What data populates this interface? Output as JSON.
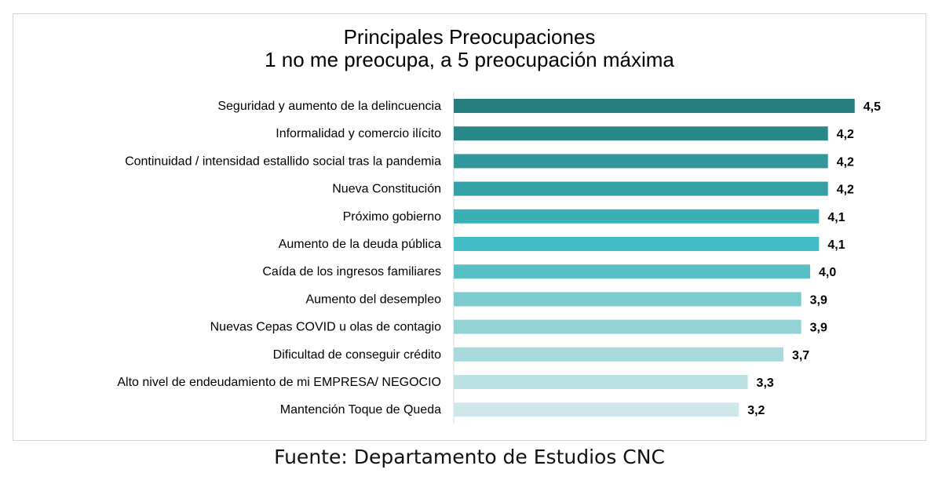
{
  "chart_data": {
    "type": "bar",
    "orientation": "horizontal",
    "title": "Principales Preocupaciones",
    "subtitle": "1 no me preocupa, a 5 preocupación máxima",
    "xlim": [
      0,
      5
    ],
    "grid": false,
    "categories": [
      "Seguridad y aumento de la delincuencia",
      "Informalidad y comercio ilícito",
      "Continuidad / intensidad estallido social tras la pandemia",
      "Nueva Constitución",
      "Próximo gobierno",
      "Aumento de la deuda pública",
      "Caída de los ingresos familiares",
      "Aumento del desempleo",
      "Nuevas Cepas COVID u olas de contagio",
      "Dificultad de conseguir crédito",
      "Alto nivel de endeudamiento de mi EMPRESA/ NEGOCIO",
      "Mantención Toque de Queda"
    ],
    "values": [
      4.5,
      4.2,
      4.2,
      4.2,
      4.1,
      4.1,
      4.0,
      3.9,
      3.9,
      3.7,
      3.3,
      3.2
    ],
    "value_labels": [
      "4,5",
      "4,2",
      "4,2",
      "4,2",
      "4,1",
      "4,1",
      "4,0",
      "3,9",
      "3,9",
      "3,7",
      "3,3",
      "3,2"
    ],
    "colors": [
      "#267c7f",
      "#2a878a",
      "#31979a",
      "#35a1a6",
      "#3bb0b5",
      "#44bcc6",
      "#58bfc4",
      "#7ccbcf",
      "#92d1d4",
      "#a8dadd",
      "#bde2e4",
      "#cfe7eb"
    ]
  },
  "source": "Fuente: Departamento de Estudios CNC"
}
